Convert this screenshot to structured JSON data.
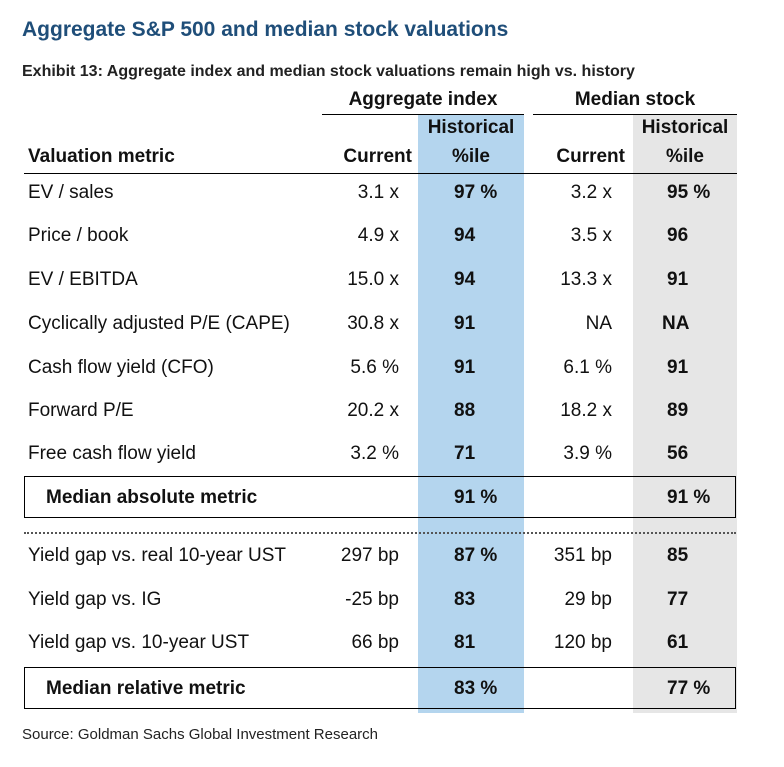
{
  "title": "Aggregate S&P 500 and median stock valuations",
  "subtitle": "Exhibit 13: Aggregate index and median stock valuations remain high vs. history",
  "groups": {
    "aggregate": "Aggregate index",
    "median": "Median stock"
  },
  "headers": {
    "metric": "Valuation metric",
    "current": "Current",
    "historical_top": "Historical",
    "historical_bottom": "%ile"
  },
  "colors": {
    "title": "#1f4e79",
    "aggregate_highlight": "#b4d5ee",
    "median_highlight": "#e6e6e6"
  },
  "rows": [
    {
      "metric": "EV / sales",
      "agg_current": "3.1 x",
      "agg_pct": "97 %",
      "med_current": "3.2 x",
      "med_pct": "95 %"
    },
    {
      "metric": "Price / book",
      "agg_current": "4.9 x",
      "agg_pct": "94",
      "med_current": "3.5 x",
      "med_pct": "96"
    },
    {
      "metric": "EV / EBITDA",
      "agg_current": "15.0 x",
      "agg_pct": "94",
      "med_current": "13.3 x",
      "med_pct": "91"
    },
    {
      "metric": "Cyclically adjusted P/E (CAPE)",
      "agg_current": "30.8 x",
      "agg_pct": "91",
      "med_current": "NA",
      "med_pct": "NA"
    },
    {
      "metric": "Cash flow yield (CFO)",
      "agg_current": "5.6 %",
      "agg_pct": "91",
      "med_current": "6.1 %",
      "med_pct": "91"
    },
    {
      "metric": "Forward P/E",
      "agg_current": "20.2 x",
      "agg_pct": "88",
      "med_current": "18.2 x",
      "med_pct": "89"
    },
    {
      "metric": "Free cash flow yield",
      "agg_current": "3.2 %",
      "agg_pct": "71",
      "med_current": "3.9 %",
      "med_pct": "56"
    }
  ],
  "median_absolute": {
    "label": "Median absolute metric",
    "agg_pct": "91 %",
    "med_pct": "91 %"
  },
  "relative_rows": [
    {
      "metric": "Yield gap vs. real 10-year UST",
      "agg_current": "297 bp",
      "agg_pct": "87 %",
      "med_current": "351 bp",
      "med_pct": "85"
    },
    {
      "metric": "Yield gap vs. IG",
      "agg_current": "-25 bp",
      "agg_pct": "83",
      "med_current": "29 bp",
      "med_pct": "77"
    },
    {
      "metric": "Yield gap vs. 10-year UST",
      "agg_current": "66 bp",
      "agg_pct": "81",
      "med_current": "120 bp",
      "med_pct": "61"
    }
  ],
  "median_relative": {
    "label": "Median relative metric",
    "agg_pct": "83 %",
    "med_pct": "77 %"
  },
  "source": "Source: Goldman Sachs Global Investment Research"
}
